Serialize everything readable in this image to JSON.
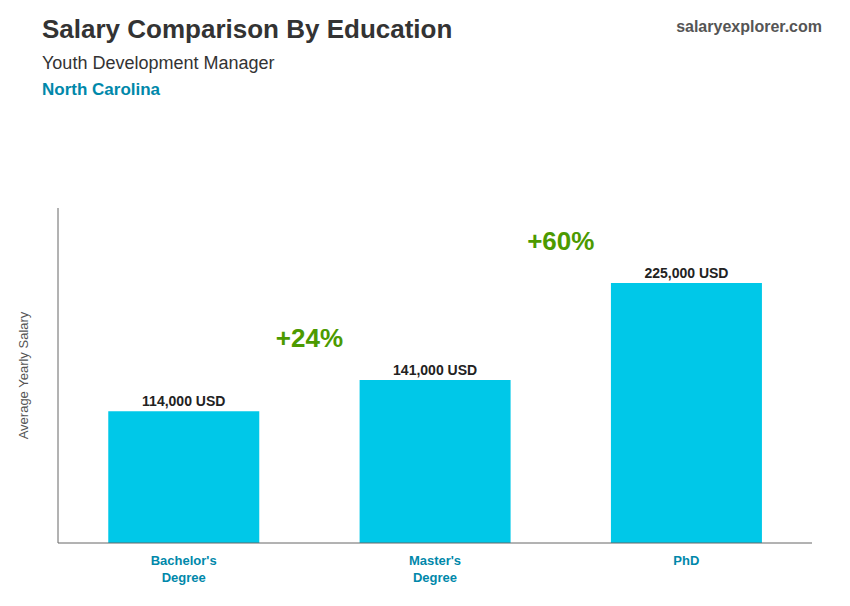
{
  "chart_data": {
    "type": "bar",
    "title": "Salary Comparison By Education",
    "subtitle": "Youth Development Manager",
    "annotations": [
      "North Carolina",
      "salaryexplorer.com",
      "+24%",
      "+60%"
    ],
    "ylabel": "Average Yearly Salary",
    "categories": [
      "Bachelor's\nDegree",
      "Master's\nDegree",
      "PhD"
    ],
    "values": [
      114000,
      141000,
      225000
    ],
    "value_labels": [
      "114,000 USD",
      "141,000 USD",
      "225,000 USD"
    ],
    "data_labels": true,
    "color": "#00c8e8",
    "ylim": [
      0,
      290000
    ],
    "tick_labels": false,
    "grid": false
  }
}
